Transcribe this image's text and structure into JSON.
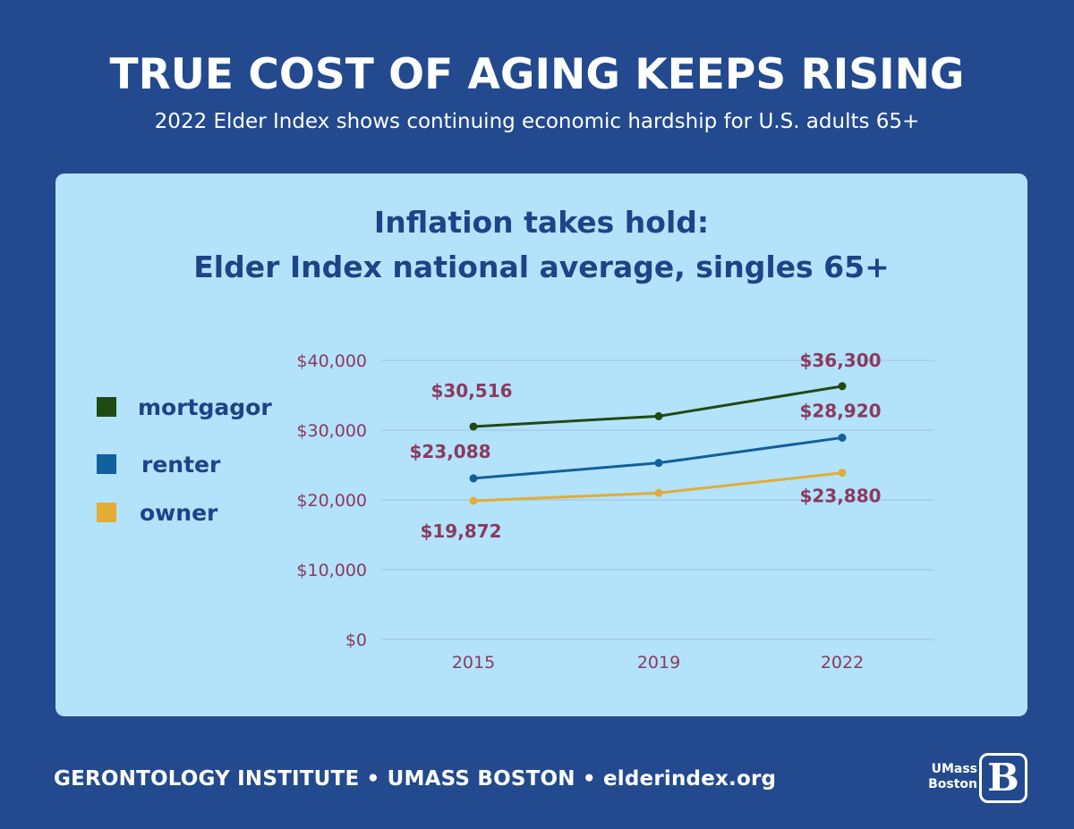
{
  "header": {
    "title": "TRUE COST OF AGING KEEPS RISING",
    "subtitle": "2022 Elder Index shows continuing economic hardship for U.S. adults 65+"
  },
  "footer": {
    "text": "GERONTOLOGY INSTITUTE • UMASS BOSTON • elderindex.org",
    "logo_line1": "UMass",
    "logo_line2": "Boston",
    "logo_mark": "B"
  },
  "colors": {
    "background": "#234a8e",
    "card": "#b3e2fb",
    "title": "#1d4487",
    "label": "#8b3a5e",
    "grid": "#9cc3dd"
  },
  "chart_data": {
    "type": "line",
    "title_line1": "Inflation takes hold:",
    "title_line2": "Elder Index national average, singles 65+",
    "categories": [
      "2015",
      "2019",
      "2022"
    ],
    "yticks": [
      "$40,000",
      "$30,000",
      "$20,000",
      "$10,000",
      "$0"
    ],
    "ylim": [
      0,
      40000
    ],
    "grid": true,
    "legend_position": "left",
    "series": [
      {
        "name": "mortgagor",
        "color": "#1f4a12",
        "values": [
          30516,
          32000,
          36300
        ],
        "labels": [
          "$30,516",
          "",
          "$36,300"
        ]
      },
      {
        "name": "renter",
        "color": "#10609b",
        "values": [
          23088,
          25300,
          28920
        ],
        "labels": [
          "$23,088",
          "",
          "$28,920"
        ]
      },
      {
        "name": "owner",
        "color": "#e2ad35",
        "values": [
          19872,
          21000,
          23880
        ],
        "labels": [
          "$19,872",
          "",
          "$23,880"
        ]
      }
    ]
  }
}
